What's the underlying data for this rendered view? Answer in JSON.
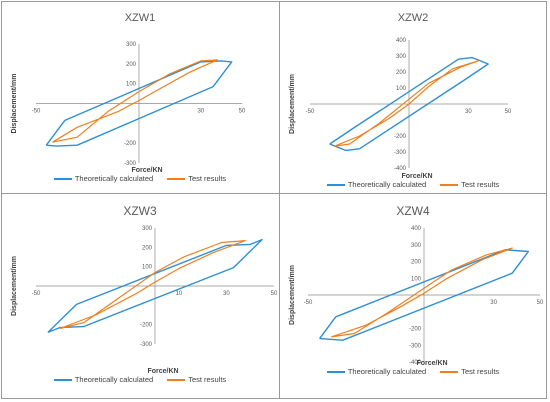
{
  "chart_data": [
    {
      "type": "line",
      "title": "XZW1",
      "xlabel": "Force/KN",
      "ylabel": "Displacement/mm",
      "xlim": [
        -50,
        50
      ],
      "ylim": [
        -300,
        300
      ],
      "x_ticks": [
        "-50",
        "30",
        "50"
      ],
      "y_ticks": [
        "300",
        "200",
        "100",
        "-200",
        "-300"
      ],
      "grid": false,
      "legend_position": "bottom",
      "series": [
        {
          "name": "Theoretically calculated",
          "color": "#2E8FD6",
          "points": [
            [
              -45,
              -210
            ],
            [
              -36,
              -85
            ],
            [
              30,
              210
            ],
            [
              40,
              215
            ],
            [
              45,
              210
            ],
            [
              36,
              85
            ],
            [
              -30,
              -210
            ],
            [
              -40,
              -215
            ],
            [
              -45,
              -210
            ]
          ]
        },
        {
          "name": "Test results",
          "color": "#F07F20",
          "points": [
            [
              -42,
              -195
            ],
            [
              -30,
              -120
            ],
            [
              -10,
              -40
            ],
            [
              0,
              15
            ],
            [
              12,
              85
            ],
            [
              25,
              160
            ],
            [
              38,
              220
            ],
            [
              30,
              215
            ],
            [
              15,
              150
            ],
            [
              0,
              60
            ],
            [
              -15,
              -40
            ],
            [
              -30,
              -170
            ],
            [
              -42,
              -195
            ]
          ]
        }
      ]
    },
    {
      "type": "line",
      "title": "XZW2",
      "xlabel": "Force/KN",
      "ylabel": "Displacement/mm",
      "xlim": [
        -50,
        50
      ],
      "ylim": [
        -400,
        400
      ],
      "x_ticks": [
        "-50",
        "30",
        "50"
      ],
      "y_ticks": [
        "400",
        "300",
        "200",
        "100",
        "-200",
        "-300",
        "-400"
      ],
      "grid": false,
      "legend_position": "bottom",
      "series": [
        {
          "name": "Theoretically calculated",
          "color": "#2E8FD6",
          "points": [
            [
              -40,
              -250
            ],
            [
              -28,
              -150
            ],
            [
              25,
              280
            ],
            [
              32,
              290
            ],
            [
              40,
              250
            ],
            [
              28,
              150
            ],
            [
              -25,
              -280
            ],
            [
              -32,
              -290
            ],
            [
              -40,
              -250
            ]
          ]
        },
        {
          "name": "Test results",
          "color": "#F07F20",
          "points": [
            [
              -38,
              -265
            ],
            [
              -25,
              -200
            ],
            [
              -10,
              -90
            ],
            [
              0,
              0
            ],
            [
              10,
              110
            ],
            [
              22,
              220
            ],
            [
              35,
              270
            ],
            [
              26,
              230
            ],
            [
              10,
              130
            ],
            [
              0,
              30
            ],
            [
              -15,
              -120
            ],
            [
              -30,
              -250
            ],
            [
              -38,
              -265
            ]
          ]
        }
      ]
    },
    {
      "type": "line",
      "title": "XZW3",
      "xlabel": "Force/KN",
      "ylabel": "Displacement/mm",
      "xlim": [
        -50,
        50
      ],
      "ylim": [
        -300,
        300
      ],
      "x_ticks": [
        "-50",
        "10",
        "30",
        "50"
      ],
      "y_ticks": [
        "300",
        "200",
        "100",
        "-200",
        "-300"
      ],
      "grid": false,
      "legend_position": "bottom",
      "series": [
        {
          "name": "Theoretically calculated",
          "color": "#2E8FD6",
          "points": [
            [
              -45,
              -240
            ],
            [
              -33,
              -95
            ],
            [
              30,
              210
            ],
            [
              40,
              215
            ],
            [
              45,
              240
            ],
            [
              33,
              95
            ],
            [
              -30,
              -210
            ],
            [
              -40,
              -215
            ],
            [
              -45,
              -240
            ]
          ]
        },
        {
          "name": "Test results",
          "color": "#F07F20",
          "points": [
            [
              -40,
              -220
            ],
            [
              -25,
              -150
            ],
            [
              -8,
              -40
            ],
            [
              0,
              20
            ],
            [
              10,
              90
            ],
            [
              24,
              170
            ],
            [
              38,
              235
            ],
            [
              28,
              225
            ],
            [
              12,
              150
            ],
            [
              0,
              70
            ],
            [
              -15,
              -60
            ],
            [
              -30,
              -190
            ],
            [
              -40,
              -220
            ]
          ]
        }
      ]
    },
    {
      "type": "line",
      "title": "XZW4",
      "xlabel": "Force/KN",
      "ylabel": "Displacement/mm",
      "xlim": [
        -50,
        50
      ],
      "ylim": [
        -400,
        400
      ],
      "x_ticks": [
        "-50",
        "30",
        "50"
      ],
      "y_ticks": [
        "400",
        "300",
        "200",
        "100",
        "-200",
        "-300",
        "-400"
      ],
      "grid": false,
      "legend_position": "bottom",
      "series": [
        {
          "name": "Theoretically calculated",
          "color": "#2E8FD6",
          "points": [
            [
              -45,
              -260
            ],
            [
              -38,
              -130
            ],
            [
              35,
              270
            ],
            [
              45,
              260
            ],
            [
              38,
              130
            ],
            [
              -35,
              -270
            ],
            [
              -45,
              -260
            ]
          ]
        },
        {
          "name": "Test results",
          "color": "#F07F20",
          "points": [
            [
              -40,
              -250
            ],
            [
              -25,
              -180
            ],
            [
              -10,
              -70
            ],
            [
              0,
              10
            ],
            [
              10,
              100
            ],
            [
              25,
              210
            ],
            [
              38,
              280
            ],
            [
              27,
              240
            ],
            [
              12,
              150
            ],
            [
              0,
              40
            ],
            [
              -15,
              -100
            ],
            [
              -30,
              -230
            ],
            [
              -40,
              -250
            ]
          ]
        }
      ]
    }
  ]
}
